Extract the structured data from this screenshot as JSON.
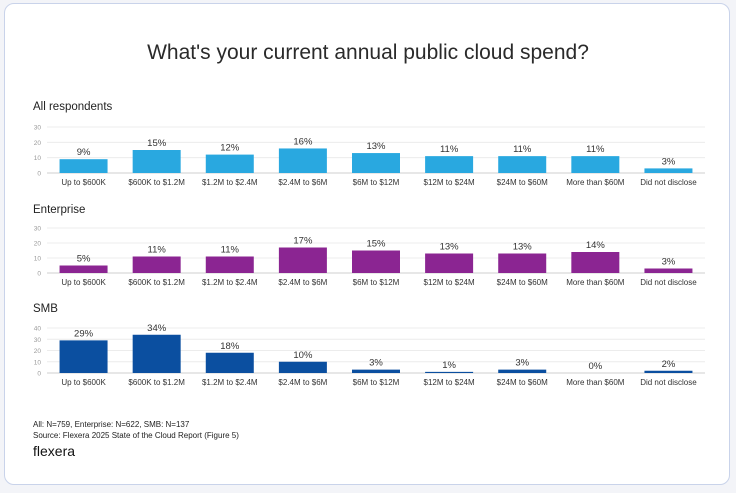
{
  "title": "What's your current annual public cloud spend?",
  "footnote_n": "All: N=759, Enterprise: N=622, SMB: N=137",
  "footnote_source": "Source: Flexera 2025 State of the Cloud Report (Figure 5)",
  "brand": "flexera",
  "chart_data": [
    {
      "type": "bar",
      "title": "All respondents",
      "categories": [
        "Up to $600K",
        "$600K to $1.2M",
        "$1.2M to $2.4M",
        "$2.4M to $6M",
        "$6M to $12M",
        "$12M to $24M",
        "$24M to $60M",
        "More than $60M",
        "Did not disclose"
      ],
      "values": [
        9,
        15,
        12,
        16,
        13,
        11,
        11,
        11,
        3
      ],
      "labels": [
        "9%",
        "15%",
        "12%",
        "16%",
        "13%",
        "11%",
        "11%",
        "11%",
        "3%"
      ],
      "ylim": [
        0,
        30
      ],
      "yticks": [
        "0",
        "10",
        "20",
        "30"
      ],
      "color": "#29a8e0"
    },
    {
      "type": "bar",
      "title": "Enterprise",
      "categories": [
        "Up to $600K",
        "$600K to $1.2M",
        "$1.2M to $2.4M",
        "$2.4M to $6M",
        "$6M to $12M",
        "$12M to $24M",
        "$24M to $60M",
        "More than $60M",
        "Did not disclose"
      ],
      "values": [
        5,
        11,
        11,
        17,
        15,
        13,
        13,
        14,
        3
      ],
      "labels": [
        "5%",
        "11%",
        "11%",
        "17%",
        "15%",
        "13%",
        "13%",
        "14%",
        "3%"
      ],
      "ylim": [
        0,
        30
      ],
      "yticks": [
        "0",
        "10",
        "20",
        "30"
      ],
      "color": "#8b2592"
    },
    {
      "type": "bar",
      "title": "SMB",
      "categories": [
        "Up to $600K",
        "$600K to $1.2M",
        "$1.2M to $2.4M",
        "$2.4M to $6M",
        "$6M to $12M",
        "$12M to $24M",
        "$24M to $60M",
        "More than $60M",
        "Did not disclose"
      ],
      "values": [
        29,
        34,
        18,
        10,
        3,
        1,
        3,
        0,
        2
      ],
      "labels": [
        "29%",
        "34%",
        "18%",
        "10%",
        "3%",
        "1%",
        "3%",
        "0%",
        "2%"
      ],
      "ylim": [
        0,
        40
      ],
      "yticks": [
        "0",
        "10",
        "20",
        "30",
        "40"
      ],
      "color": "#0b4fa0"
    }
  ]
}
